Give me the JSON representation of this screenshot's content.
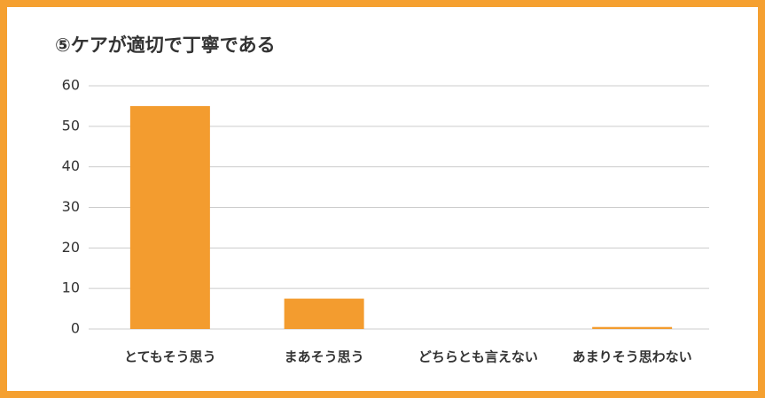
{
  "chart_data": {
    "type": "bar",
    "title": "⑤ケアが適切で丁寧である",
    "categories": [
      "とてもそう思う",
      "まあそう思う",
      "どちらとも言えない",
      "あまりそう思わない"
    ],
    "values": [
      55,
      7.5,
      0,
      0.5
    ],
    "color": "#f39c2f",
    "ylim": [
      0,
      60
    ],
    "yticks": [
      0,
      10,
      20,
      30,
      40,
      50,
      60
    ],
    "grid": true
  }
}
